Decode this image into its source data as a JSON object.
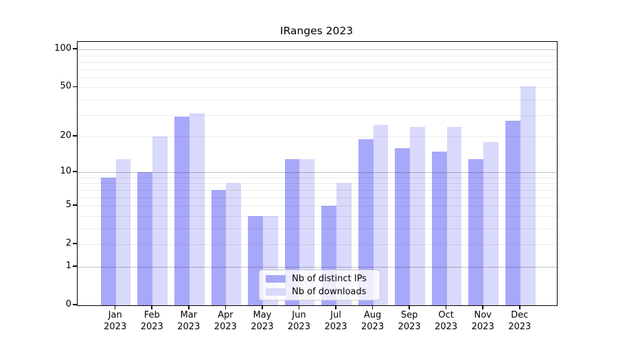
{
  "chart_data": {
    "type": "bar",
    "title": "IRanges 2023",
    "categories": [
      "Jan 2023",
      "Feb 2023",
      "Mar 2023",
      "Apr 2023",
      "May 2023",
      "Jun 2023",
      "Jul 2023",
      "Aug 2023",
      "Sep 2023",
      "Oct 2023",
      "Nov 2023",
      "Dec 2023"
    ],
    "series": [
      {
        "name": "Nb of distinct IPs",
        "color": "#a8a8fa",
        "values": [
          9,
          10,
          29,
          7,
          4,
          13,
          5,
          19,
          16,
          15,
          13,
          27
        ]
      },
      {
        "name": "Nb of downloads",
        "color": "#d9d9fb",
        "values": [
          13,
          20,
          31,
          8,
          4,
          13,
          8,
          25,
          24,
          24,
          18,
          51
        ]
      }
    ],
    "xlabel": "",
    "ylabel": "",
    "yscale": "log1p",
    "ylim": [
      0,
      114
    ],
    "yticks": [
      0,
      1,
      2,
      5,
      10,
      20,
      50,
      100
    ],
    "grid": {
      "major": [
        1,
        10,
        100
      ],
      "minor": [
        2,
        3,
        4,
        5,
        6,
        7,
        8,
        9,
        20,
        30,
        40,
        50,
        60,
        70,
        80,
        90
      ]
    },
    "legend": {
      "position": "lower center",
      "entries": [
        "Nb of distinct IPs",
        "Nb of downloads"
      ]
    }
  }
}
